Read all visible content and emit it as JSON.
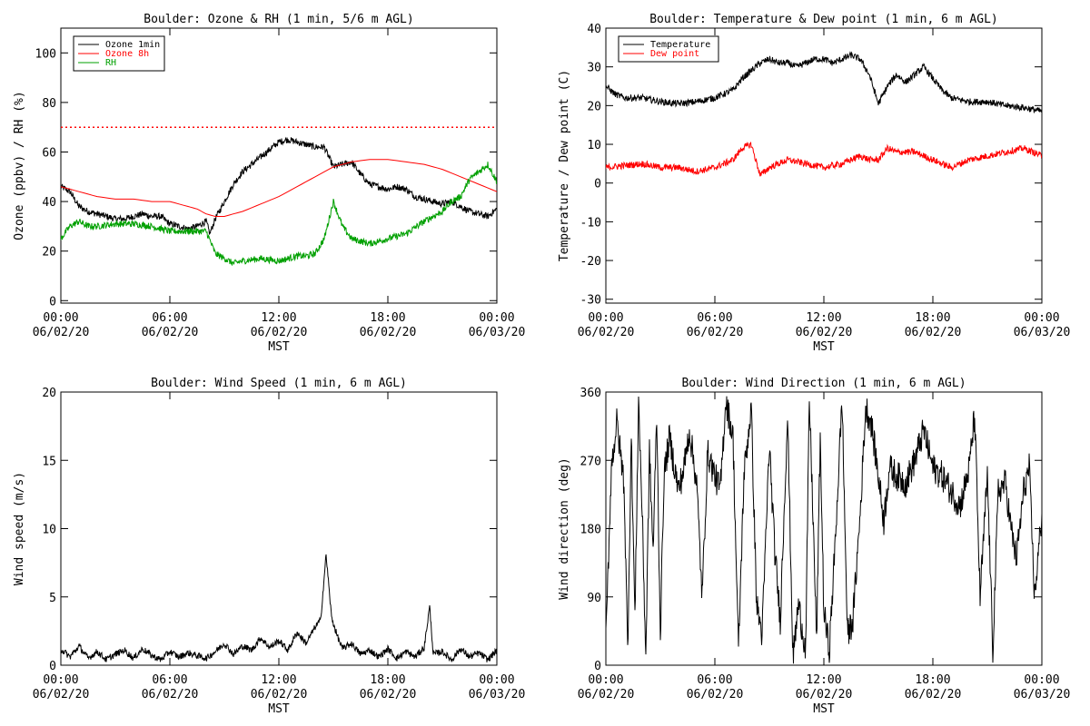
{
  "chart_data": [
    {
      "type": "line",
      "title": "Boulder: Ozone & RH (1 min, 5/6 m AGL)",
      "ylabel": "Ozone (ppbv) / RH (%)",
      "xlabel": "",
      "ylim": [
        -1,
        110
      ],
      "yticks": [
        0,
        20,
        40,
        60,
        80,
        100
      ],
      "xlim": [
        0,
        24
      ],
      "xticks": [
        0,
        6,
        12,
        18,
        24
      ],
      "xtick_labels": [
        [
          "00:00",
          "06/02/20"
        ],
        [
          "06:00",
          "06/02/20"
        ],
        [
          "12:00",
          "06/02/20"
        ],
        [
          "18:00",
          "06/02/20"
        ],
        [
          "00:00",
          "06/03/20"
        ]
      ],
      "legend_position": "top-left",
      "reference_lines": [
        {
          "y": 70,
          "color": "#ff0000",
          "style": "dotted"
        }
      ],
      "series": [
        {
          "name": "Ozone 1min",
          "color": "#000000",
          "x": [
            0,
            0.5,
            1,
            1.5,
            2,
            2.5,
            3,
            3.5,
            4,
            4.5,
            5,
            5.5,
            6,
            6.5,
            7,
            7.5,
            8,
            8.2,
            8.5,
            9,
            9.5,
            10,
            10.5,
            11,
            11.5,
            12,
            12.5,
            13,
            13.5,
            14,
            14.5,
            15,
            15.5,
            16,
            16.5,
            17,
            17.5,
            18,
            18.5,
            19,
            19.5,
            20,
            20.5,
            21,
            21.5,
            22,
            22.5,
            23,
            23.5,
            24
          ],
          "y": [
            46,
            44,
            38,
            36,
            35,
            34,
            33,
            33,
            34,
            35,
            34,
            34,
            31,
            30,
            29,
            30,
            32,
            27,
            33,
            40,
            47,
            52,
            55,
            58,
            61,
            64,
            65,
            64,
            63,
            62,
            62,
            54,
            55,
            56,
            51,
            47,
            46,
            45,
            46,
            45,
            42,
            41,
            40,
            39,
            40,
            38,
            36,
            35,
            34,
            37
          ]
        },
        {
          "name": "Ozone 8h",
          "color": "#ff0000",
          "x": [
            0,
            1,
            2,
            3,
            4,
            5,
            6,
            7,
            7.5,
            8,
            8.5,
            9,
            10,
            11,
            12,
            13,
            14,
            15,
            16,
            17,
            18,
            19,
            20,
            21,
            22,
            23,
            24
          ],
          "y": [
            46,
            44,
            42,
            41,
            41,
            40,
            40,
            38,
            37,
            35,
            34,
            34,
            36,
            39,
            42,
            46,
            50,
            54,
            56,
            57,
            57,
            56,
            55,
            53,
            50,
            47,
            44
          ]
        },
        {
          "name": "RH",
          "color": "#00a000",
          "x": [
            0,
            0.5,
            1,
            1.5,
            2,
            3,
            4,
            5,
            6,
            7,
            8,
            8.5,
            9,
            9.5,
            10,
            11,
            12,
            13,
            13.5,
            14,
            14.5,
            15,
            15.5,
            16,
            17,
            18,
            19,
            20,
            21,
            21.5,
            22,
            22.5,
            23,
            23.5,
            24
          ],
          "y": [
            25,
            30,
            32,
            30,
            30,
            31,
            31,
            30,
            28,
            28,
            28,
            19,
            17,
            15,
            16,
            17,
            16,
            18,
            18,
            19,
            25,
            40,
            30,
            25,
            23,
            25,
            27,
            32,
            36,
            40,
            42,
            49,
            52,
            55,
            48
          ]
        }
      ]
    },
    {
      "type": "line",
      "title": "Boulder: Temperature & Dew point (1 min, 6 m AGL)",
      "ylabel": "Temperature / Dew point (C)",
      "xlabel": "",
      "ylim": [
        -31,
        40
      ],
      "yticks": [
        -30,
        -20,
        -10,
        0,
        10,
        20,
        30,
        40
      ],
      "xlim": [
        0,
        24
      ],
      "xticks": [
        0,
        6,
        12,
        18,
        24
      ],
      "xtick_labels": [
        [
          "00:00",
          "06/02/20"
        ],
        [
          "06:00",
          "06/02/20"
        ],
        [
          "12:00",
          "06/02/20"
        ],
        [
          "18:00",
          "06/02/20"
        ],
        [
          "00:00",
          "06/03/20"
        ]
      ],
      "legend_position": "top-left",
      "series": [
        {
          "name": "Temperature",
          "color": "#000000",
          "x": [
            0,
            0.5,
            1,
            2,
            3,
            4,
            5,
            6,
            6.5,
            7,
            7.5,
            8,
            8.5,
            9,
            9.5,
            10,
            10.5,
            11,
            11.5,
            12,
            12.5,
            13,
            13.5,
            14,
            14.5,
            15,
            15.5,
            16,
            16.5,
            17,
            17.5,
            18,
            18.5,
            19,
            20,
            21,
            22,
            23,
            24
          ],
          "y": [
            25,
            23,
            22,
            22,
            21,
            20.5,
            21,
            22,
            23,
            24,
            27,
            29,
            31,
            32,
            31,
            31,
            30,
            31,
            32,
            32,
            31,
            32,
            33,
            32,
            28,
            20.5,
            25,
            28,
            26,
            28,
            30,
            27,
            24,
            22,
            21,
            21,
            20,
            19.5,
            18.5
          ]
        },
        {
          "name": "Dew point",
          "color": "#ff0000",
          "x": [
            0,
            1,
            2,
            3,
            4,
            5,
            6,
            7,
            7.5,
            8,
            8.5,
            9,
            9.5,
            10,
            11,
            12,
            13,
            14,
            14.5,
            15,
            15.5,
            16,
            17,
            18,
            19,
            20,
            21,
            22,
            23,
            24
          ],
          "y": [
            4,
            4.5,
            5,
            4,
            4,
            3,
            4,
            6,
            9,
            10,
            2,
            4,
            5,
            6,
            5,
            4,
            5,
            7,
            6,
            6,
            9,
            8,
            8,
            6,
            4,
            6,
            7,
            8,
            9,
            7
          ]
        }
      ]
    },
    {
      "type": "line",
      "title": "Boulder: Wind Speed (1 min, 6 m AGL)",
      "ylabel": "Wind speed (m/s)",
      "xlabel": "MST",
      "ylim": [
        0,
        20
      ],
      "yticks": [
        0,
        5,
        10,
        15,
        20
      ],
      "xlim": [
        0,
        24
      ],
      "xticks": [
        0,
        6,
        12,
        18,
        24
      ],
      "xtick_labels": [
        [
          "00:00",
          "06/02/20"
        ],
        [
          "06:00",
          "06/02/20"
        ],
        [
          "12:00",
          "06/02/20"
        ],
        [
          "18:00",
          "06/02/20"
        ],
        [
          "00:00",
          "06/03/20"
        ]
      ],
      "series": [
        {
          "name": "",
          "color": "#000000",
          "x": [
            0,
            0.5,
            1,
            1.5,
            2,
            2.5,
            3,
            3.5,
            4,
            4.5,
            5,
            5.5,
            6,
            6.5,
            7,
            7.5,
            8,
            8.5,
            9,
            9.5,
            10,
            10.5,
            11,
            11.5,
            12,
            12.5,
            13,
            13.5,
            14,
            14.3,
            14.6,
            14.9,
            15.2,
            15.5,
            16,
            16.5,
            17,
            17.5,
            18,
            18.5,
            19,
            19.5,
            20,
            20.3,
            20.5,
            21,
            21.5,
            22,
            22.5,
            23,
            23.5,
            24
          ],
          "y": [
            1.2,
            0.6,
            1.4,
            0.5,
            1.0,
            0.4,
            0.8,
            1.1,
            0.5,
            1.2,
            0.7,
            0.4,
            1.0,
            0.6,
            0.9,
            0.7,
            0.5,
            1.0,
            1.6,
            0.8,
            1.4,
            1.1,
            2.0,
            1.3,
            1.8,
            1.1,
            2.4,
            1.6,
            2.8,
            3.3,
            8.1,
            3.5,
            2.2,
            1.2,
            1.6,
            0.8,
            1.1,
            0.6,
            1.2,
            0.5,
            1.0,
            0.6,
            1.3,
            4.3,
            0.8,
            1.0,
            0.4,
            1.2,
            0.6,
            0.9,
            0.4,
            1.1
          ]
        }
      ]
    },
    {
      "type": "line",
      "title": "Boulder: Wind Direction (1 min, 6 m AGL)",
      "ylabel": "Wind direction (deg)",
      "xlabel": "MST",
      "ylim": [
        0,
        360
      ],
      "yticks": [
        0,
        90,
        180,
        270,
        360
      ],
      "xlim": [
        0,
        24
      ],
      "xticks": [
        0,
        6,
        12,
        18,
        24
      ],
      "xtick_labels": [
        [
          "00:00",
          "06/02/20"
        ],
        [
          "06:00",
          "06/02/20"
        ],
        [
          "12:00",
          "06/02/20"
        ],
        [
          "18:00",
          "06/02/20"
        ],
        [
          "00:00",
          "06/03/20"
        ]
      ],
      "series": [
        {
          "name": "",
          "color": "#000000",
          "x": [
            0,
            0.3,
            0.6,
            1,
            1.2,
            1.4,
            1.6,
            1.8,
            2,
            2.2,
            2.4,
            2.6,
            2.8,
            3,
            3.2,
            3.5,
            4,
            4.3,
            4.6,
            5,
            5.3,
            5.6,
            6,
            6.3,
            6.6,
            7,
            7.3,
            7.6,
            8,
            8.3,
            8.6,
            9,
            9.3,
            9.6,
            10,
            10.3,
            10.6,
            11,
            11.2,
            11.4,
            11.6,
            11.8,
            12,
            12.3,
            12.6,
            13,
            13.3,
            13.6,
            14,
            14.3,
            14.6,
            15,
            15.3,
            15.6,
            16,
            16.5,
            17,
            17.5,
            18,
            18.5,
            19,
            19.5,
            20,
            20.3,
            20.6,
            21,
            21.3,
            21.6,
            22,
            22.3,
            22.6,
            23,
            23.3,
            23.6,
            24
          ],
          "y": [
            30,
            260,
            320,
            240,
            20,
            300,
            60,
            350,
            200,
            10,
            280,
            150,
            330,
            40,
            250,
            300,
            230,
            260,
            310,
            240,
            90,
            280,
            250,
            230,
            350,
            300,
            20,
            250,
            340,
            80,
            40,
            290,
            150,
            60,
            330,
            10,
            80,
            20,
            350,
            200,
            30,
            300,
            70,
            20,
            150,
            350,
            40,
            60,
            200,
            340,
            320,
            250,
            190,
            260,
            250,
            240,
            270,
            310,
            260,
            250,
            230,
            210,
            260,
            330,
            90,
            250,
            20,
            230,
            240,
            180,
            140,
            230,
            260,
            90,
            200
          ]
        }
      ]
    }
  ]
}
